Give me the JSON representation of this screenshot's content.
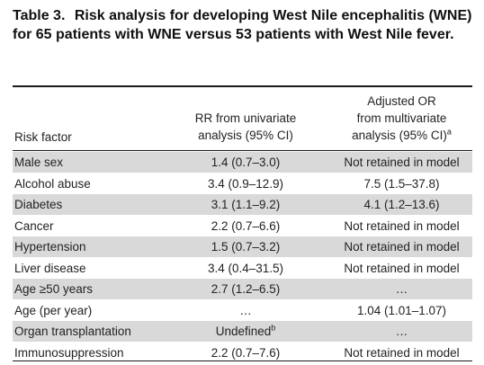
{
  "caption": {
    "label": "Table 3.",
    "text": "Risk analysis for developing West Nile encephalitis (WNE) for 65 patients with WNE versus 53 patients with West Nile fever."
  },
  "header": {
    "risk_factor": "Risk factor",
    "rr_line1": "RR from univariate",
    "rr_line2": "analysis (95% CI)",
    "or_line1": "Adjusted OR",
    "or_line2": "from multivariate",
    "or_line3": "analysis (95% CI)",
    "or_footnote": "a"
  },
  "rows": [
    {
      "factor": "Male sex",
      "rr": "1.4 (0.7–3.0)",
      "rr_note": "",
      "or": "Not retained in model"
    },
    {
      "factor": "Alcohol abuse",
      "rr": "3.4 (0.9–12.9)",
      "rr_note": "",
      "or": "7.5 (1.5–37.8)"
    },
    {
      "factor": "Diabetes",
      "rr": "3.1 (1.1–9.2)",
      "rr_note": "",
      "or": "4.1 (1.2–13.6)"
    },
    {
      "factor": "Cancer",
      "rr": "2.2 (0.7–6.6)",
      "rr_note": "",
      "or": "Not retained in model"
    },
    {
      "factor": "Hypertension",
      "rr": "1.5 (0.7–3.2)",
      "rr_note": "",
      "or": "Not retained in model"
    },
    {
      "factor": "Liver disease",
      "rr": "3.4 (0.4–31.5)",
      "rr_note": "",
      "or": "Not retained in model"
    },
    {
      "factor": "Age ≥50 years",
      "rr": "2.7 (1.2–6.5)",
      "rr_note": "",
      "or": "…"
    },
    {
      "factor": "Age (per year)",
      "rr": "…",
      "rr_note": "",
      "or": "1.04 (1.01–1.07)"
    },
    {
      "factor": "Organ transplantation",
      "rr": "Undefined",
      "rr_note": "b",
      "or": "…"
    },
    {
      "factor": "Immunosuppression",
      "rr": "2.2 (0.7–7.6)",
      "rr_note": "",
      "or": "Not retained in model"
    }
  ],
  "colors": {
    "shade": "#d9d9d9",
    "rule": "#1a1a1a"
  }
}
